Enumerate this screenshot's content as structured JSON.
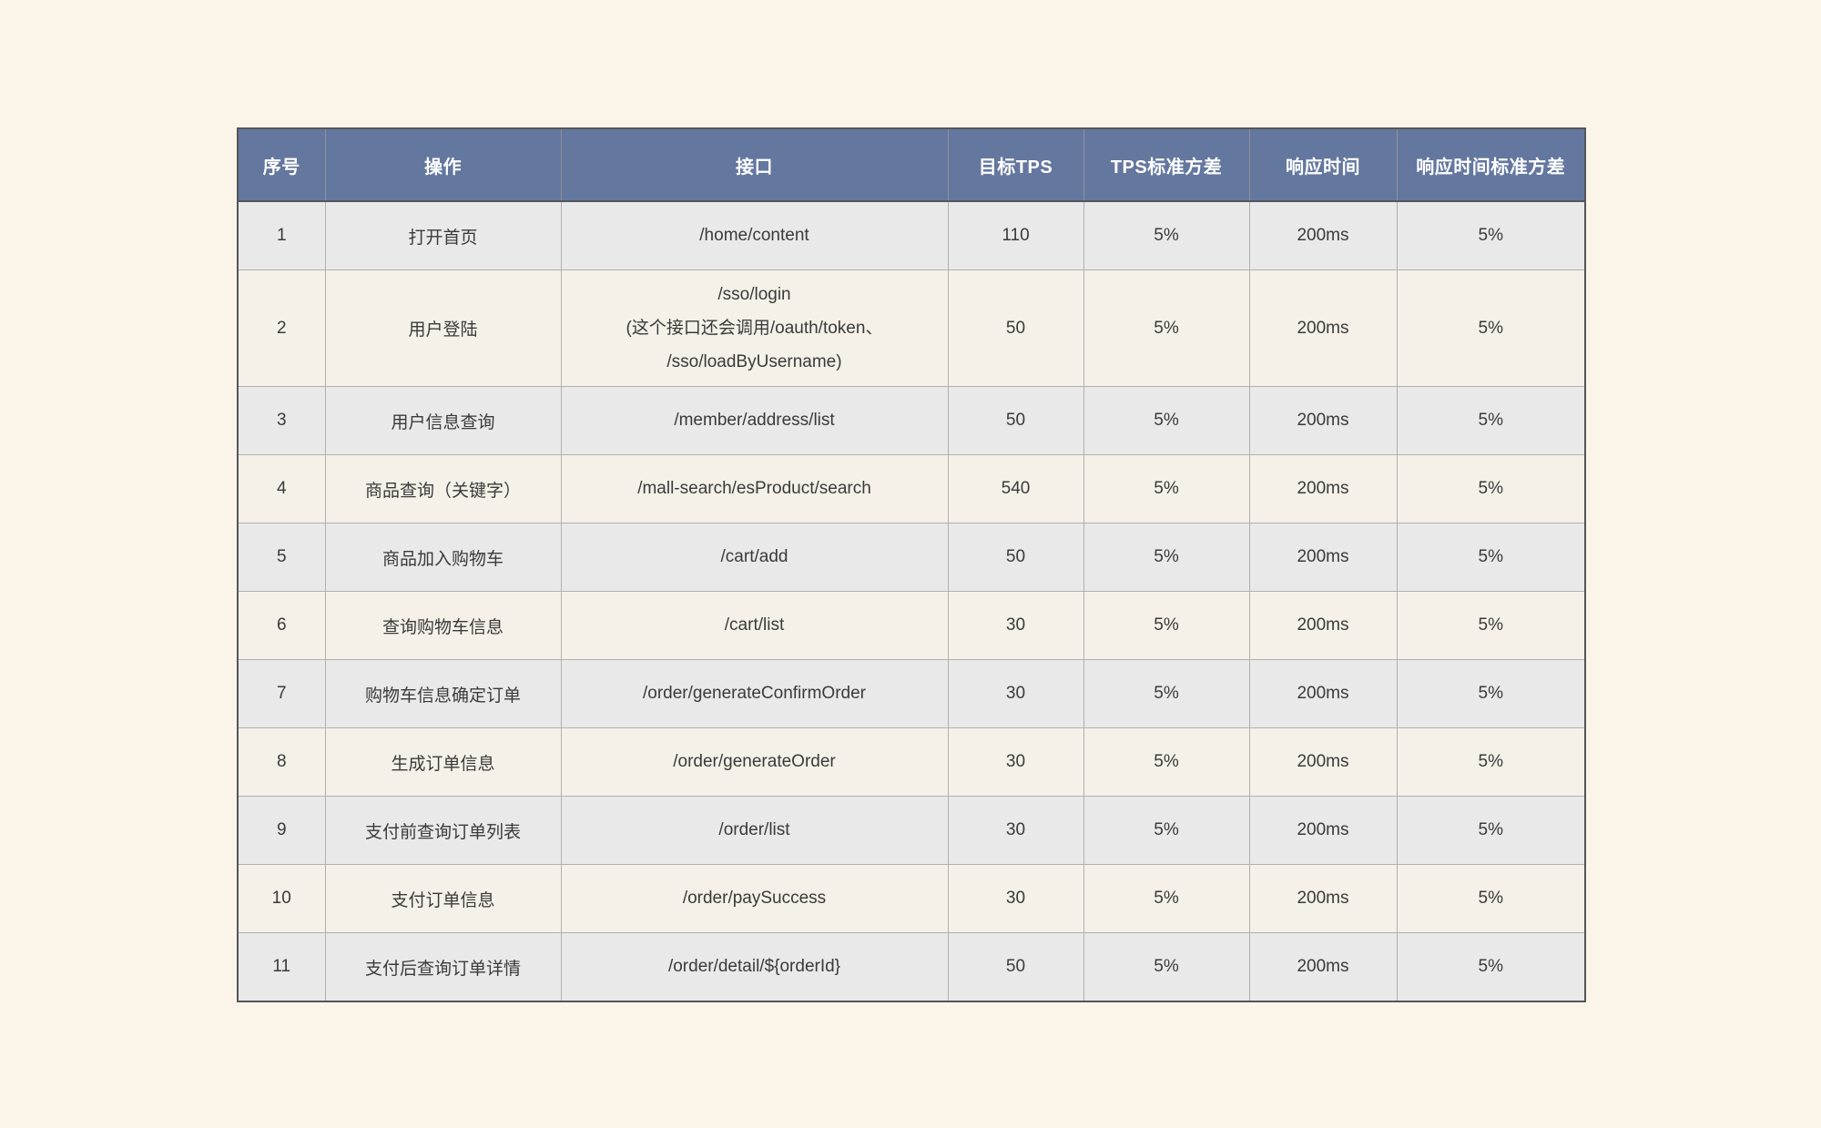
{
  "colors": {
    "page_background": "#fbf4e8",
    "header_background": "#64779f",
    "header_text": "#ffffff",
    "row_odd_background": "#e9e9e9",
    "row_even_background": "#f5f1e8",
    "outer_border": "#54555a",
    "inner_border": "#b1b0ae",
    "body_text": "#3a3a3a"
  },
  "table": {
    "headers": [
      "序号",
      "操作",
      "接口",
      "目标TPS",
      "TPS标准方差",
      "响应时间",
      "响应时间标准方差"
    ],
    "rows": [
      {
        "no": "1",
        "op": "打开首页",
        "api": "/home/content",
        "tps": "110",
        "tps_sd": "5%",
        "rt": "200ms",
        "rt_sd": "5%"
      },
      {
        "no": "2",
        "op": "用户登陆",
        "api": "/sso/login\n(这个接口还会调用/oauth/token、\n/sso/loadByUsername)",
        "tps": "50",
        "tps_sd": "5%",
        "rt": "200ms",
        "rt_sd": "5%"
      },
      {
        "no": "3",
        "op": "用户信息查询",
        "api": "/member/address/list",
        "tps": "50",
        "tps_sd": "5%",
        "rt": "200ms",
        "rt_sd": "5%"
      },
      {
        "no": "4",
        "op": "商品查询（关键字）",
        "api": "/mall-search/esProduct/search",
        "tps": "540",
        "tps_sd": "5%",
        "rt": "200ms",
        "rt_sd": "5%"
      },
      {
        "no": "5",
        "op": "商品加入购物车",
        "api": "/cart/add",
        "tps": "50",
        "tps_sd": "5%",
        "rt": "200ms",
        "rt_sd": "5%"
      },
      {
        "no": "6",
        "op": "查询购物车信息",
        "api": "/cart/list",
        "tps": "30",
        "tps_sd": "5%",
        "rt": "200ms",
        "rt_sd": "5%"
      },
      {
        "no": "7",
        "op": "购物车信息确定订单",
        "api": "/order/generateConfirmOrder",
        "tps": "30",
        "tps_sd": "5%",
        "rt": "200ms",
        "rt_sd": "5%"
      },
      {
        "no": "8",
        "op": "生成订单信息",
        "api": "/order/generateOrder",
        "tps": "30",
        "tps_sd": "5%",
        "rt": "200ms",
        "rt_sd": "5%"
      },
      {
        "no": "9",
        "op": "支付前查询订单列表",
        "api": "/order/list",
        "tps": "30",
        "tps_sd": "5%",
        "rt": "200ms",
        "rt_sd": "5%"
      },
      {
        "no": "10",
        "op": "支付订单信息",
        "api": "/order/paySuccess",
        "tps": "30",
        "tps_sd": "5%",
        "rt": "200ms",
        "rt_sd": "5%"
      },
      {
        "no": "11",
        "op": "支付后查询订单详情",
        "api": "/order/detail/${orderId}",
        "tps": "50",
        "tps_sd": "5%",
        "rt": "200ms",
        "rt_sd": "5%"
      }
    ]
  }
}
